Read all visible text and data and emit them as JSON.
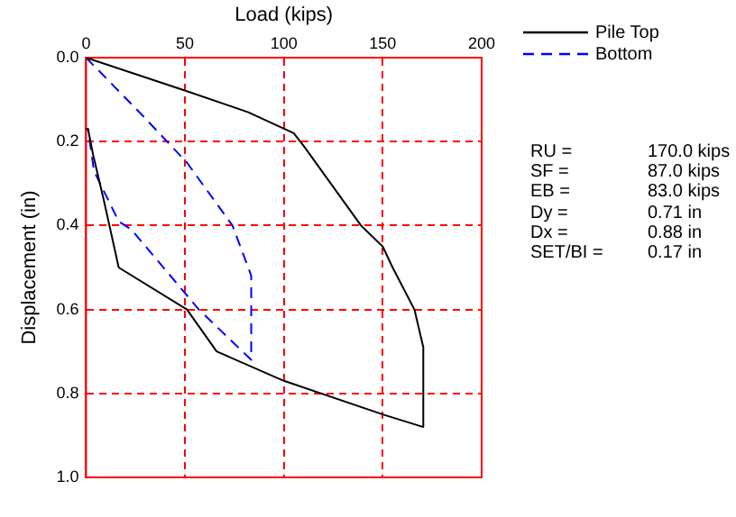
{
  "chart_data": {
    "type": "line",
    "xlabel": "Load (kips)",
    "ylabel": "Displacement (in)",
    "xlim": [
      0,
      200
    ],
    "xticks": [
      0,
      50,
      100,
      150,
      200
    ],
    "ylim": [
      1.0,
      0.0
    ],
    "yticks": [
      {
        "value": 0,
        "label": "0.0"
      },
      {
        "value": 0.2,
        "label": "0.2"
      },
      {
        "value": 0.4,
        "label": "0.4"
      },
      {
        "value": 0.6,
        "label": "0.6"
      },
      {
        "value": 0.8,
        "label": "0.8"
      },
      {
        "value": 1,
        "label": "1.0"
      }
    ],
    "grid": true,
    "legend": "top right",
    "series": [
      {
        "name": "Pile Top",
        "color": "#000000",
        "line_style": "solid",
        "x": [
          0,
          51,
          82,
          105,
          110,
          139,
          150,
          155,
          166,
          170.5,
          170.5,
          150,
          100,
          66,
          51,
          16.5,
          9,
          3.5,
          1,
          0
        ],
        "values": [
          0,
          0.08,
          0.13,
          0.18,
          0.21,
          0.4,
          0.45,
          0.5,
          0.6,
          0.69,
          0.88,
          0.85,
          0.77,
          0.7,
          0.6,
          0.5,
          0.34,
          0.23,
          0.17,
          0.17
        ]
      },
      {
        "name": "Bottom",
        "color": "#0000ff",
        "line_style": "dashed",
        "x": [
          0,
          29,
          51,
          74,
          82,
          83.5,
          83.5,
          57,
          23,
          16.5,
          4,
          1,
          0
        ],
        "values": [
          0,
          0.14,
          0.25,
          0.4,
          0.5,
          0.52,
          0.72,
          0.6,
          0.41,
          0.39,
          0.27,
          0.17,
          0.17
        ]
      }
    ],
    "annotations": [
      "RU = 170.0 kips",
      "SF = 87.0 kips",
      "EB = 83.0 kips",
      "Dy = 0.71 in",
      "Dx = 0.88 in",
      "SET/BI = 0.17 in"
    ]
  }
}
